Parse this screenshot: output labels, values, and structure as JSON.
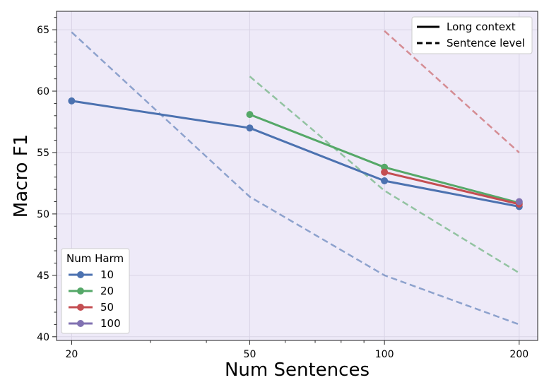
{
  "chart_data": {
    "type": "line",
    "xlabel": "Num Sentences",
    "ylabel": "Macro F1",
    "x_scale": "log",
    "xlim": [
      18.5,
      220
    ],
    "ylim": [
      39.7,
      66.5
    ],
    "xticks": [
      20,
      50,
      100,
      200
    ],
    "yticks": [
      40,
      45,
      50,
      55,
      60,
      65
    ],
    "grid": true,
    "background_color": "#eeeaf8",
    "style_legend": {
      "placement": "top-right",
      "entries": [
        {
          "label": "Long context",
          "style": "solid"
        },
        {
          "label": "Sentence level",
          "style": "dashed"
        }
      ]
    },
    "color_legend": {
      "placement": "lower-left",
      "title": "Num Harm",
      "entries": [
        {
          "label": "10",
          "color": "#4c72b0"
        },
        {
          "label": "20",
          "color": "#55a868"
        },
        {
          "label": "50",
          "color": "#c44e52"
        },
        {
          "label": "100",
          "color": "#8172b2"
        }
      ]
    },
    "series": [
      {
        "harm": "10",
        "style": "solid",
        "color": "#4c72b0",
        "x": [
          20,
          50,
          100,
          200
        ],
        "y": [
          59.2,
          57.0,
          52.7,
          50.6
        ]
      },
      {
        "harm": "20",
        "style": "solid",
        "color": "#55a868",
        "x": [
          50,
          100,
          200
        ],
        "y": [
          58.1,
          53.8,
          50.9
        ]
      },
      {
        "harm": "50",
        "style": "solid",
        "color": "#c44e52",
        "x": [
          100,
          200
        ],
        "y": [
          53.4,
          50.8
        ]
      },
      {
        "harm": "100",
        "style": "solid",
        "color": "#8172b2",
        "x": [
          200
        ],
        "y": [
          51.0
        ]
      },
      {
        "harm": "10",
        "style": "dashed",
        "color": "#4c72b0",
        "x": [
          20,
          50,
          100,
          200
        ],
        "y": [
          64.8,
          51.4,
          45.0,
          41.0
        ]
      },
      {
        "harm": "20",
        "style": "dashed",
        "color": "#55a868",
        "x": [
          50,
          100,
          200
        ],
        "y": [
          61.2,
          51.9,
          45.2
        ]
      },
      {
        "harm": "50",
        "style": "dashed",
        "color": "#c44e52",
        "x": [
          100,
          200
        ],
        "y": [
          64.9,
          55.0
        ]
      }
    ]
  }
}
